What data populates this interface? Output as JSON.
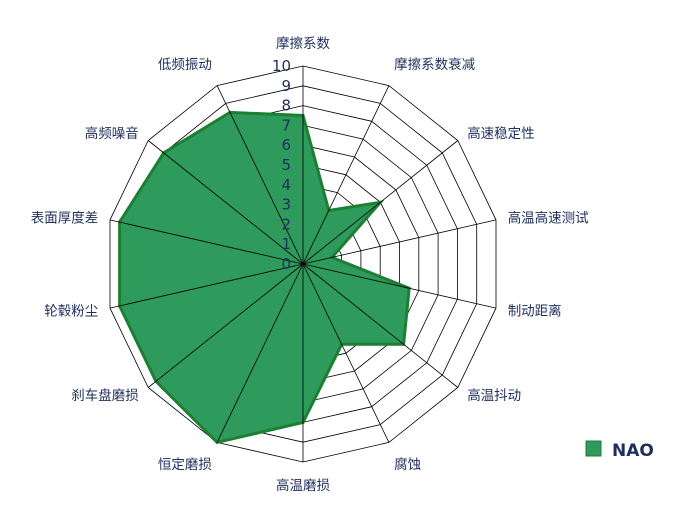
{
  "chart_data": {
    "type": "radar",
    "axes": [
      "摩擦系数",
      "摩擦系数衰减",
      "高速稳定性",
      "高温高速测试",
      "制动距离",
      "高温抖动",
      "腐蚀",
      "高温磨损",
      "恒定磨损",
      "刹车盘磨损",
      "轮毂粉尘",
      "表面厚度差",
      "高频噪音",
      "低频振动"
    ],
    "range": [
      0,
      10
    ],
    "ticks": [
      "0",
      "1",
      "2",
      "3",
      "4",
      "5",
      "6",
      "7",
      "8",
      "9",
      "10"
    ],
    "grid": true,
    "legend_position": "bottom-right",
    "series": [
      {
        "name": "NAO",
        "values": [
          7.5,
          3.0,
          5.0,
          1.5,
          5.5,
          6.5,
          4.5,
          8.0,
          10.0,
          9.5,
          9.5,
          9.5,
          9.0,
          8.5
        ],
        "fill": "#2e9a5c",
        "stroke": "#1c7f32"
      }
    ]
  }
}
